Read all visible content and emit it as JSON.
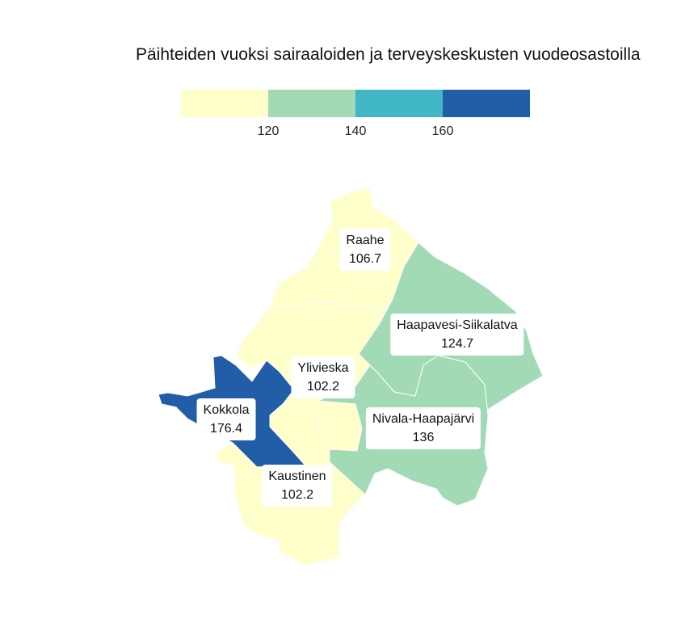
{
  "title": "Päihteiden vuoksi sairaaloiden ja terveyskeskusten vuodeosastoilla",
  "legend": {
    "colors": [
      "#ffffcc",
      "#a1dab4",
      "#41b6c4",
      "#225ea8"
    ],
    "ticks": [
      "120",
      "140",
      "160"
    ]
  },
  "regions": [
    {
      "name": "Raahe",
      "value": "106.7",
      "color": "#ffffcc"
    },
    {
      "name": "Haapavesi-Siikalatva",
      "value": "124.7",
      "color": "#a1dab4"
    },
    {
      "name": "Ylivieska",
      "value": "102.2",
      "color": "#ffffcc"
    },
    {
      "name": "Kokkola",
      "value": "176.4",
      "color": "#225ea8"
    },
    {
      "name": "Nivala-Haapajärvi",
      "value": "136",
      "color": "#a1dab4"
    },
    {
      "name": "Kaustinen",
      "value": "102.2",
      "color": "#ffffcc"
    }
  ]
}
